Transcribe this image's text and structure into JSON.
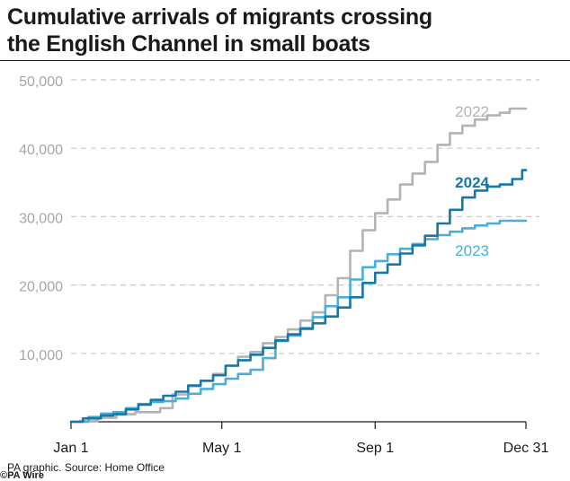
{
  "title": {
    "line1": "Cumulative arrivals of migrants crossing",
    "line2": "the English Channel in small boats"
  },
  "source": "PA graphic. Source: Home Office",
  "credit": "©PA Wire",
  "chart_data": {
    "type": "line",
    "title": "Cumulative arrivals of migrants crossing the English Channel in small boats",
    "xlabel": "",
    "ylabel": "",
    "x_unit": "day of year",
    "xlim": [
      1,
      366
    ],
    "ylim": [
      0,
      50000
    ],
    "yticks": [
      {
        "value": 10000,
        "label": "10,000"
      },
      {
        "value": 20000,
        "label": "20,000"
      },
      {
        "value": 30000,
        "label": "30,000"
      },
      {
        "value": 40000,
        "label": "40,000"
      },
      {
        "value": 50000,
        "label": "50,000"
      }
    ],
    "xticks": [
      {
        "value": 1,
        "label": "Jan 1"
      },
      {
        "value": 122,
        "label": "May 1"
      },
      {
        "value": 245,
        "label": "Sep 1"
      },
      {
        "value": 366,
        "label": "Dec 31"
      }
    ],
    "grid": "horizontal dashed",
    "series": [
      {
        "name": "2022",
        "color": "#b3b3b3",
        "x": [
          1,
          15,
          30,
          45,
          60,
          70,
          75,
          90,
          100,
          110,
          120,
          130,
          140,
          150,
          160,
          170,
          180,
          190,
          200,
          210,
          220,
          230,
          240,
          250,
          260,
          270,
          280,
          290,
          300,
          310,
          320,
          330,
          340,
          350,
          356,
          360,
          366
        ],
        "values": [
          0,
          100,
          600,
          1100,
          1400,
          1400,
          2000,
          4000,
          5200,
          6000,
          7000,
          8200,
          9500,
          10200,
          11500,
          12400,
          13500,
          14800,
          16000,
          18500,
          21000,
          25000,
          28000,
          30500,
          32500,
          34700,
          36300,
          38000,
          40500,
          42200,
          43300,
          44200,
          44800,
          45200,
          45800,
          45800,
          45800
        ]
      },
      {
        "name": "2023",
        "color": "#4aaed8",
        "x": [
          1,
          10,
          20,
          30,
          40,
          50,
          60,
          70,
          80,
          90,
          100,
          110,
          120,
          130,
          140,
          150,
          160,
          170,
          180,
          190,
          200,
          210,
          220,
          230,
          240,
          250,
          260,
          270,
          280,
          290,
          300,
          310,
          320,
          330,
          340,
          350,
          366
        ],
        "values": [
          0,
          0,
          700,
          1200,
          1400,
          2000,
          2600,
          2900,
          3000,
          3400,
          4100,
          4800,
          5500,
          6300,
          7000,
          7600,
          9300,
          11800,
          12600,
          13700,
          15300,
          16900,
          18200,
          20800,
          22600,
          23500,
          24500,
          25300,
          26000,
          26700,
          27300,
          27800,
          28300,
          28700,
          29000,
          29400,
          29400
        ]
      },
      {
        "name": "2024",
        "color": "#1777a8",
        "x": [
          1,
          20,
          30,
          40,
          50,
          60,
          70,
          80,
          90,
          100,
          110,
          120,
          130,
          140,
          150,
          160,
          170,
          180,
          190,
          200,
          210,
          220,
          230,
          240,
          250,
          260,
          270,
          280,
          290,
          300,
          310,
          320,
          330,
          340,
          350,
          360,
          366
        ],
        "values": [
          0,
          500,
          900,
          1100,
          1800,
          2500,
          3200,
          3800,
          4400,
          5300,
          6000,
          6800,
          8200,
          9000,
          9800,
          10800,
          11900,
          12800,
          13600,
          14400,
          15400,
          16700,
          18200,
          20300,
          21800,
          23000,
          24600,
          25800,
          27200,
          29000,
          31000,
          32800,
          33800,
          34400,
          34700,
          35500,
          36800
        ]
      }
    ],
    "series_labels": [
      {
        "series": "2022",
        "text": "2022"
      },
      {
        "series": "2024",
        "text": "2024"
      },
      {
        "series": "2023",
        "text": "2023"
      }
    ]
  }
}
